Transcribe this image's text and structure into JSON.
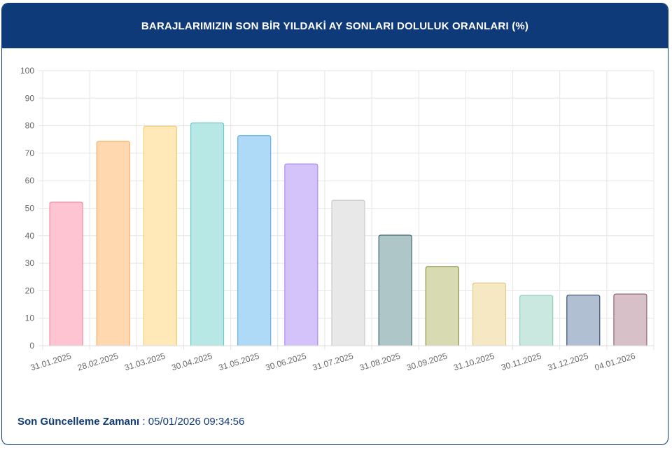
{
  "header": {
    "title": "BARAJLARIMIZIN SON BİR YILDAKİ AY SONLARI DOLULUK ORANLARI (%)"
  },
  "footer": {
    "label": "Son Güncelleme Zamanı",
    "separator": " : ",
    "value": "05/01/2026 09:34:56"
  },
  "chart_data": {
    "type": "bar",
    "title": "BARAJLARIMIZIN SON BİR YILDAKİ AY SONLARI DOLULUK ORANLARI (%)",
    "xlabel": "",
    "ylabel": "",
    "ylim": [
      0,
      100
    ],
    "yticks": [
      0,
      10,
      20,
      30,
      40,
      50,
      60,
      70,
      80,
      90,
      100
    ],
    "grid": true,
    "categories": [
      "31.01.2025",
      "28.02.2025",
      "31.03.2025",
      "30.04.2025",
      "31.05.2025",
      "30.06.2025",
      "31.07.2025",
      "31.08.2025",
      "30.09.2025",
      "31.10.2025",
      "30.11.2025",
      "31.12.2025",
      "04.01.2026"
    ],
    "values": [
      52.2,
      74.3,
      79.8,
      81.0,
      76.4,
      66.1,
      52.9,
      40.2,
      28.8,
      22.8,
      18.3,
      18.4,
      18.8
    ],
    "colors": [
      {
        "fill": "#ffc4d1",
        "stroke": "#f08aa2"
      },
      {
        "fill": "#ffd8b0",
        "stroke": "#f5b06a"
      },
      {
        "fill": "#ffe9b8",
        "stroke": "#f2cf6b"
      },
      {
        "fill": "#b8e8e6",
        "stroke": "#6ccac5"
      },
      {
        "fill": "#aed9f7",
        "stroke": "#5fb2ea"
      },
      {
        "fill": "#d4c3fb",
        "stroke": "#a98cf2"
      },
      {
        "fill": "#e8e8e9",
        "stroke": "#c9cacc"
      },
      {
        "fill": "#aec6c8",
        "stroke": "#3f6e72"
      },
      {
        "fill": "#d8dbb2",
        "stroke": "#8b934a"
      },
      {
        "fill": "#f6e8c3",
        "stroke": "#e2c98a"
      },
      {
        "fill": "#cbe8e0",
        "stroke": "#8ecfbd"
      },
      {
        "fill": "#b0bfd2",
        "stroke": "#3b4f7a"
      },
      {
        "fill": "#d7c0c7",
        "stroke": "#8f6877"
      }
    ]
  }
}
